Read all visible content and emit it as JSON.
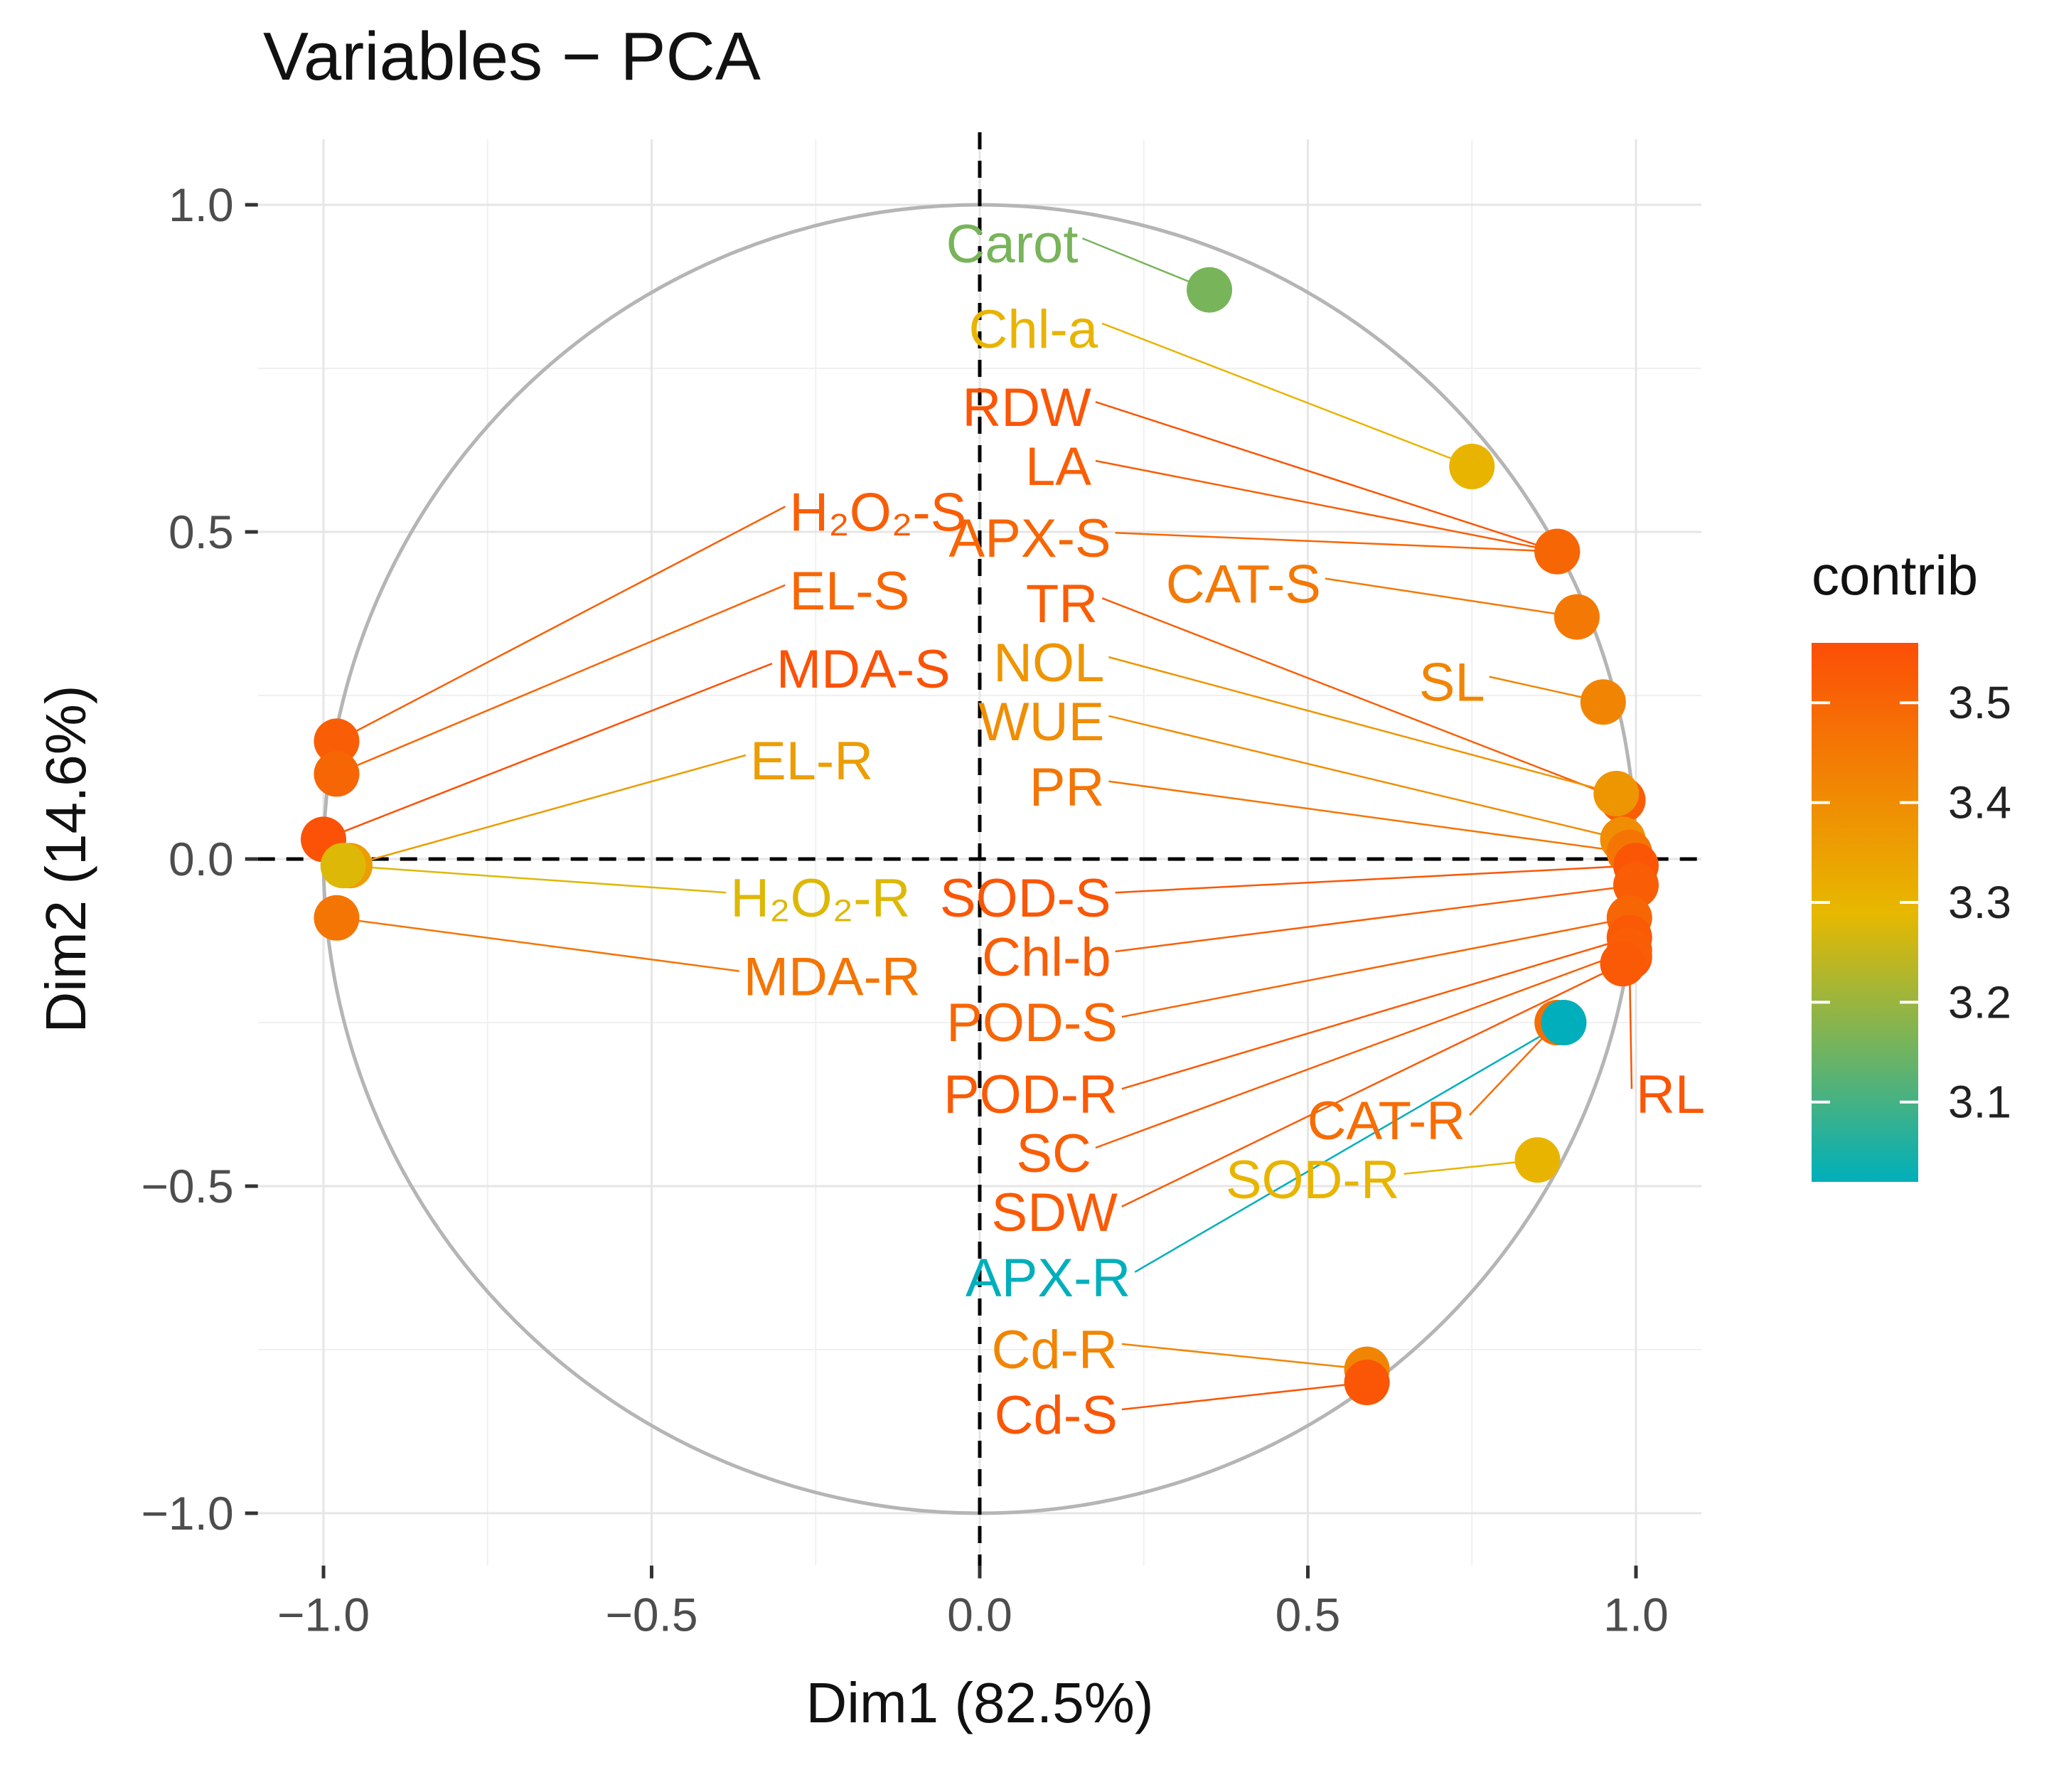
{
  "chart_data": {
    "type": "scatter",
    "title": "Variables − PCA",
    "xlabel": "Dim1 (82.5%)",
    "ylabel": "Dim2 (14.6%)",
    "xlim": [
      -1.1,
      1.1
    ],
    "ylim": [
      -1.08,
      1.1
    ],
    "x_ticks": [
      -1.0,
      -0.5,
      0.0,
      0.5,
      1.0
    ],
    "y_ticks": [
      -1.0,
      -0.5,
      0.0,
      0.5,
      1.0
    ],
    "x_tick_labels": [
      "−1.0",
      "−0.5",
      "0.0",
      "0.5",
      "1.0"
    ],
    "y_tick_labels": [
      "−1.0",
      "−0.5",
      "0.0",
      "0.5",
      "1.0"
    ],
    "grid": true,
    "correlation_circle": true,
    "legend": {
      "title": "contrib",
      "range": [
        3.02,
        3.56
      ],
      "ticks": [
        3.1,
        3.2,
        3.3,
        3.4,
        3.5
      ],
      "tick_labels": [
        "3.1",
        "3.2",
        "3.3",
        "3.4",
        "3.5"
      ],
      "colors": [
        "#00AFBB",
        "#E7B800",
        "#FC4E07"
      ],
      "position": "right"
    },
    "variables": [
      {
        "name": "Carot",
        "dim1": 0.35,
        "dim2": 0.87,
        "contrib": 3.16,
        "lx": 0.15,
        "ly": 0.94
      },
      {
        "name": "Chl-a",
        "dim1": 0.75,
        "dim2": 0.6,
        "contrib": 3.3,
        "lx": 0.18,
        "ly": 0.81
      },
      {
        "name": "RDW",
        "dim1": 0.88,
        "dim2": 0.47,
        "contrib": 3.54,
        "lx": 0.17,
        "ly": 0.69
      },
      {
        "name": "LA",
        "dim1": 0.88,
        "dim2": 0.47,
        "contrib": 3.52,
        "lx": 0.17,
        "ly": 0.6
      },
      {
        "name": "APX-S",
        "dim1": 0.88,
        "dim2": 0.47,
        "contrib": 3.5,
        "lx": 0.2,
        "ly": 0.49
      },
      {
        "name": "CAT-S",
        "dim1": 0.91,
        "dim2": 0.37,
        "contrib": 3.45,
        "lx": 0.52,
        "ly": 0.42
      },
      {
        "name": "TR",
        "dim1": 0.98,
        "dim2": 0.09,
        "contrib": 3.52,
        "lx": 0.18,
        "ly": 0.39
      },
      {
        "name": "SL",
        "dim1": 0.95,
        "dim2": 0.24,
        "contrib": 3.42,
        "lx": 0.77,
        "ly": 0.27
      },
      {
        "name": "NOL",
        "dim1": 0.97,
        "dim2": 0.1,
        "contrib": 3.38,
        "lx": 0.19,
        "ly": 0.3
      },
      {
        "name": "WUE",
        "dim1": 0.98,
        "dim2": 0.03,
        "contrib": 3.4,
        "lx": 0.19,
        "ly": 0.21
      },
      {
        "name": "PR",
        "dim1": 0.99,
        "dim2": 0.01,
        "contrib": 3.46,
        "lx": 0.19,
        "ly": 0.11
      },
      {
        "name": "SOD-S",
        "dim1": 1.0,
        "dim2": -0.01,
        "contrib": 3.54,
        "lx": 0.2,
        "ly": -0.06
      },
      {
        "name": "Chl-b",
        "dim1": 1.0,
        "dim2": -0.04,
        "contrib": 3.52,
        "lx": 0.2,
        "ly": -0.15
      },
      {
        "name": "POD-S",
        "dim1": 0.99,
        "dim2": -0.09,
        "contrib": 3.5,
        "lx": 0.21,
        "ly": -0.25
      },
      {
        "name": "POD-R",
        "dim1": 0.99,
        "dim2": -0.12,
        "contrib": 3.53,
        "lx": 0.21,
        "ly": -0.36
      },
      {
        "name": "RL",
        "dim1": 0.99,
        "dim2": -0.15,
        "contrib": 3.54,
        "lx": 1.0,
        "ly": -0.36
      },
      {
        "name": "CAT-R",
        "dim1": 0.88,
        "dim2": -0.25,
        "contrib": 3.48,
        "lx": 0.74,
        "ly": -0.4
      },
      {
        "name": "SC",
        "dim1": 0.99,
        "dim2": -0.14,
        "contrib": 3.52,
        "lx": 0.17,
        "ly": -0.45
      },
      {
        "name": "SOD-R",
        "dim1": 0.85,
        "dim2": -0.46,
        "contrib": 3.3,
        "lx": 0.64,
        "ly": -0.49
      },
      {
        "name": "SDW",
        "dim1": 0.98,
        "dim2": -0.16,
        "contrib": 3.53,
        "lx": 0.21,
        "ly": -0.54
      },
      {
        "name": "APX-R",
        "dim1": 0.89,
        "dim2": -0.25,
        "contrib": 3.02,
        "lx": 0.23,
        "ly": -0.64
      },
      {
        "name": "Cd-R",
        "dim1": 0.59,
        "dim2": -0.78,
        "contrib": 3.42,
        "lx": 0.21,
        "ly": -0.75
      },
      {
        "name": "Cd-S",
        "dim1": 0.59,
        "dim2": -0.8,
        "contrib": 3.54,
        "lx": 0.21,
        "ly": -0.85
      },
      {
        "name": "H₂O₂-S",
        "dim1": -0.98,
        "dim2": 0.18,
        "contrib": 3.52,
        "lx": -0.29,
        "ly": 0.53
      },
      {
        "name": "EL-S",
        "dim1": -0.98,
        "dim2": 0.13,
        "contrib": 3.5,
        "lx": -0.29,
        "ly": 0.41
      },
      {
        "name": "MDA-S",
        "dim1": -1.0,
        "dim2": 0.03,
        "contrib": 3.55,
        "lx": -0.31,
        "ly": 0.29
      },
      {
        "name": "EL-R",
        "dim1": -0.96,
        "dim2": -0.01,
        "contrib": 3.36,
        "lx": -0.35,
        "ly": 0.15
      },
      {
        "name": "H₂O₂-R",
        "dim1": -0.97,
        "dim2": -0.01,
        "contrib": 3.28,
        "lx": -0.38,
        "ly": -0.06
      },
      {
        "name": "MDA-R",
        "dim1": -0.98,
        "dim2": -0.09,
        "contrib": 3.46,
        "lx": -0.36,
        "ly": -0.18
      }
    ]
  }
}
